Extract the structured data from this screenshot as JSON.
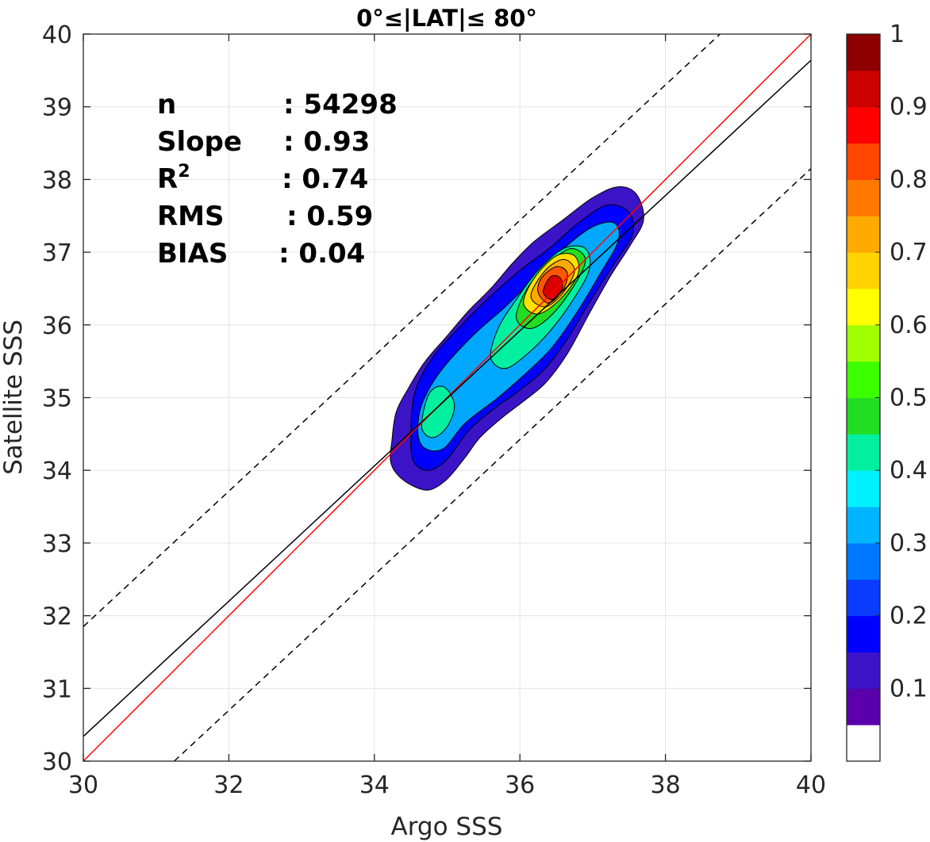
{
  "chart_data": {
    "type": "contour",
    "title": "0°≤|LAT|≤ 80°",
    "xlabel": "Argo SSS",
    "ylabel": "Satellite SSS",
    "xlim": [
      30,
      40
    ],
    "ylim": [
      30,
      40
    ],
    "xticks": [
      30,
      32,
      34,
      36,
      38,
      40
    ],
    "yticks": [
      30,
      31,
      32,
      33,
      34,
      35,
      36,
      37,
      38,
      39,
      40
    ],
    "grid": true,
    "stats": [
      {
        "label": "n",
        "value": ": 54298"
      },
      {
        "label": "Slope",
        "value": ": 0.93"
      },
      {
        "label": "R",
        "sup": "2",
        "value": ": 0.74"
      },
      {
        "label": "RMS",
        "value": ": 0.59"
      },
      {
        "label": "BIAS",
        "value": ": 0.04"
      }
    ],
    "lines": [
      {
        "kind": "one-to-one",
        "color": "#ff0000",
        "points": [
          [
            30,
            30
          ],
          [
            40,
            40
          ]
        ]
      },
      {
        "kind": "regression",
        "color": "#000000",
        "points": [
          [
            30,
            30.34
          ],
          [
            40,
            39.64
          ]
        ]
      },
      {
        "kind": "upper-bound",
        "color": "#000000",
        "dashed": true,
        "points": [
          [
            30,
            31.85
          ],
          [
            38.75,
            40
          ]
        ]
      },
      {
        "kind": "lower-bound",
        "color": "#000000",
        "dashed": true,
        "points": [
          [
            31.25,
            30
          ],
          [
            40,
            38.15
          ]
        ]
      }
    ],
    "density_peak": {
      "x": 36.45,
      "y": 36.45
    },
    "contour_levels": [
      0.05,
      0.1,
      0.15,
      0.2,
      0.25,
      0.3,
      0.35,
      0.4,
      0.45,
      0.5,
      0.55,
      0.6,
      0.65,
      0.7,
      0.75,
      0.8,
      0.85,
      0.9,
      0.95
    ],
    "contour_shapes": [
      {
        "level": 0.05,
        "color": "#3c14c8",
        "points": [
          [
            34.24,
            34.4
          ],
          [
            34.22,
            34.14
          ],
          [
            34.3,
            33.96
          ],
          [
            34.5,
            33.8
          ],
          [
            34.75,
            33.73
          ],
          [
            35.0,
            33.88
          ],
          [
            35.25,
            34.18
          ],
          [
            35.45,
            34.45
          ],
          [
            35.75,
            34.72
          ],
          [
            36.05,
            34.95
          ],
          [
            36.35,
            35.2
          ],
          [
            36.65,
            35.6
          ],
          [
            36.95,
            36.15
          ],
          [
            37.25,
            36.68
          ],
          [
            37.52,
            37.1
          ],
          [
            37.7,
            37.45
          ],
          [
            37.6,
            37.8
          ],
          [
            37.35,
            37.9
          ],
          [
            37.0,
            37.75
          ],
          [
            36.6,
            37.45
          ],
          [
            36.2,
            37.15
          ],
          [
            35.9,
            36.85
          ],
          [
            35.6,
            36.5
          ],
          [
            35.3,
            36.2
          ],
          [
            35.0,
            35.85
          ],
          [
            34.7,
            35.5
          ],
          [
            34.48,
            35.15
          ],
          [
            34.3,
            34.8
          ]
        ]
      },
      {
        "level": 0.1,
        "color": "#0000ff",
        "points": [
          [
            34.5,
            34.4
          ],
          [
            34.55,
            34.1
          ],
          [
            34.75,
            34.0
          ],
          [
            35.0,
            34.15
          ],
          [
            35.3,
            34.55
          ],
          [
            35.65,
            34.85
          ],
          [
            36.0,
            35.1
          ],
          [
            36.35,
            35.4
          ],
          [
            36.65,
            35.8
          ],
          [
            36.95,
            36.3
          ],
          [
            37.3,
            36.85
          ],
          [
            37.55,
            37.25
          ],
          [
            37.5,
            37.55
          ],
          [
            37.2,
            37.65
          ],
          [
            36.8,
            37.4
          ],
          [
            36.4,
            37.05
          ],
          [
            36.0,
            36.75
          ],
          [
            35.6,
            36.4
          ],
          [
            35.2,
            36.0
          ],
          [
            34.8,
            35.55
          ],
          [
            34.55,
            35.05
          ]
        ]
      },
      {
        "level": 0.2,
        "color": "#00a8ff",
        "points": [
          [
            34.6,
            34.5
          ],
          [
            34.7,
            34.3
          ],
          [
            34.95,
            34.3
          ],
          [
            35.25,
            34.65
          ],
          [
            35.7,
            35.0
          ],
          [
            36.1,
            35.35
          ],
          [
            36.45,
            35.7
          ],
          [
            36.8,
            36.2
          ],
          [
            37.1,
            36.7
          ],
          [
            37.35,
            37.15
          ],
          [
            37.3,
            37.4
          ],
          [
            37.0,
            37.35
          ],
          [
            36.6,
            37.05
          ],
          [
            36.2,
            36.65
          ],
          [
            35.8,
            36.25
          ],
          [
            35.35,
            35.85
          ],
          [
            34.9,
            35.35
          ],
          [
            34.65,
            34.9
          ]
        ]
      },
      {
        "level": 0.35,
        "color": "#00f0a0",
        "points": [
          [
            35.6,
            35.55
          ],
          [
            35.8,
            35.4
          ],
          [
            36.1,
            35.6
          ],
          [
            36.4,
            35.9
          ],
          [
            36.7,
            36.3
          ],
          [
            36.95,
            36.75
          ],
          [
            36.9,
            37.05
          ],
          [
            36.6,
            37.05
          ],
          [
            36.25,
            36.75
          ],
          [
            35.95,
            36.35
          ],
          [
            35.7,
            35.95
          ]
        ]
      },
      {
        "level": 0.35,
        "color": "#00f0a0",
        "points": [
          [
            34.65,
            34.6
          ],
          [
            34.8,
            34.45
          ],
          [
            35.0,
            34.6
          ],
          [
            35.1,
            34.9
          ],
          [
            34.95,
            35.15
          ],
          [
            34.75,
            35.05
          ]
        ]
      },
      {
        "level": 0.5,
        "color": "#22dd22",
        "points": [
          [
            35.95,
            36.1
          ],
          [
            36.15,
            35.95
          ],
          [
            36.45,
            36.15
          ],
          [
            36.75,
            36.55
          ],
          [
            36.9,
            36.9
          ],
          [
            36.7,
            37.05
          ],
          [
            36.4,
            36.85
          ],
          [
            36.1,
            36.5
          ]
        ]
      },
      {
        "level": 0.65,
        "color": "#ffe100",
        "points": [
          [
            36.05,
            36.3
          ],
          [
            36.25,
            36.15
          ],
          [
            36.55,
            36.35
          ],
          [
            36.8,
            36.7
          ],
          [
            36.75,
            36.95
          ],
          [
            36.5,
            36.95
          ],
          [
            36.2,
            36.65
          ]
        ]
      },
      {
        "level": 0.75,
        "color": "#ffaa00",
        "points": [
          [
            36.15,
            36.4
          ],
          [
            36.35,
            36.25
          ],
          [
            36.6,
            36.45
          ],
          [
            36.75,
            36.75
          ],
          [
            36.6,
            36.9
          ],
          [
            36.35,
            36.75
          ]
        ]
      },
      {
        "level": 0.85,
        "color": "#ff5500",
        "points": [
          [
            36.25,
            36.45
          ],
          [
            36.4,
            36.3
          ],
          [
            36.6,
            36.5
          ],
          [
            36.65,
            36.72
          ],
          [
            36.5,
            36.8
          ],
          [
            36.3,
            36.65
          ]
        ]
      },
      {
        "level": 0.95,
        "color": "#dd0000",
        "points": [
          [
            36.32,
            36.45
          ],
          [
            36.45,
            36.35
          ],
          [
            36.58,
            36.5
          ],
          [
            36.55,
            36.65
          ],
          [
            36.42,
            36.66
          ]
        ]
      }
    ],
    "colorbar": {
      "ticks": [
        "1",
        "0.9",
        "0.8",
        "0.7",
        "0.6",
        "0.5",
        "0.4",
        "0.3",
        "0.2",
        "0.1"
      ],
      "tick_values": [
        1,
        0.9,
        0.8,
        0.7,
        0.6,
        0.5,
        0.4,
        0.3,
        0.2,
        0.1
      ],
      "colors_bottom_to_top": [
        "#ffffff",
        "#5a00aa",
        "#3c14c8",
        "#0000ff",
        "#0a3cff",
        "#0078ff",
        "#00b4ff",
        "#00f0ff",
        "#00f0a0",
        "#22dd22",
        "#3cff00",
        "#a0ff00",
        "#ffff00",
        "#ffd200",
        "#ffaa00",
        "#ff7800",
        "#ff4600",
        "#ff0000",
        "#cd0000",
        "#8c0000"
      ]
    }
  }
}
